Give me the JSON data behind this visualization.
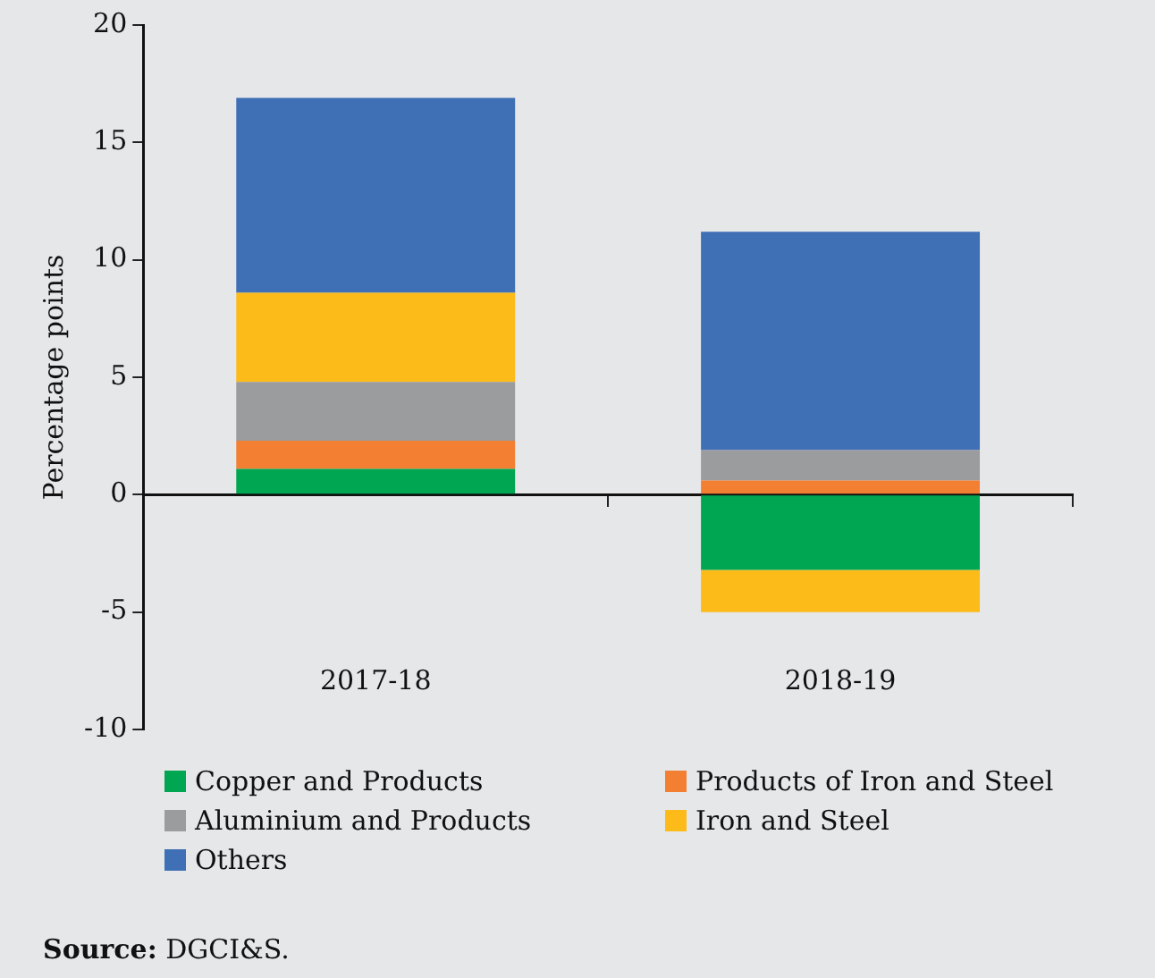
{
  "chart_data": {
    "type": "bar",
    "stacked": true,
    "ylabel": "Percentage points",
    "categories": [
      "2017-18",
      "2018-19"
    ],
    "series": [
      {
        "name": "Copper and Products",
        "color": "#00a651",
        "values": [
          1.1,
          -3.2
        ]
      },
      {
        "name": "Products of Iron and Steel",
        "color": "#f37f33",
        "values": [
          1.2,
          0.6
        ]
      },
      {
        "name": "Aluminium and Products",
        "color": "#9b9c9e",
        "values": [
          2.5,
          1.3
        ]
      },
      {
        "name": "Iron and Steel",
        "color": "#fdbb1a",
        "values": [
          3.8,
          -1.8
        ]
      },
      {
        "name": "Others",
        "color": "#3f6fb5",
        "values": [
          8.3,
          9.3
        ]
      }
    ],
    "ylim": [
      -10,
      20
    ],
    "yticks": [
      {
        "value": -10,
        "label": "-10"
      },
      {
        "value": -5,
        "label": "-5"
      },
      0,
      5,
      10,
      15,
      20
    ],
    "legend": "bottom",
    "annotations": [
      "Source: DGCI&S."
    ]
  }
}
